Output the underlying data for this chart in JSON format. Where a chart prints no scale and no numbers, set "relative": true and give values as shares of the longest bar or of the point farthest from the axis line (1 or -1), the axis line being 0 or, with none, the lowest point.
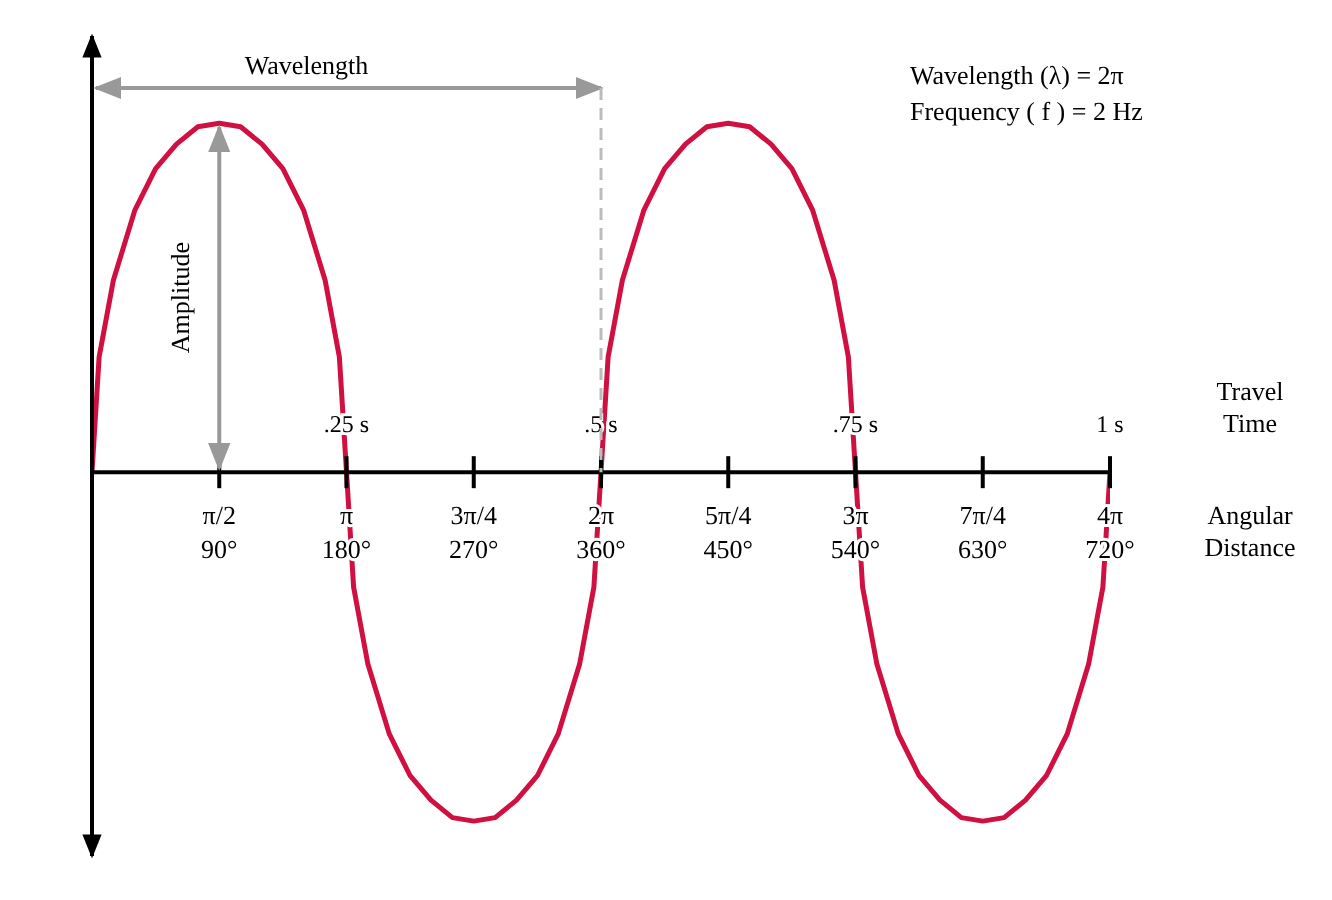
{
  "chart_data": {
    "type": "line",
    "relative": true,
    "xlabel": "Travel Time",
    "x2label": "Angular Distance",
    "xlim": [
      0,
      1
    ],
    "xticks": [
      {
        "value": 0.25,
        "label": ".25 s"
      },
      {
        "value": 0.5,
        "label": ".5 s"
      },
      {
        "value": 0.75,
        "label": ".75 s"
      },
      {
        "value": 1,
        "label": "1 s"
      }
    ],
    "x2lim": [
      0,
      720
    ],
    "x2ticks": [
      {
        "value": 90,
        "label": "90°"
      },
      {
        "value": 180,
        "label": "180°"
      },
      {
        "value": 270,
        "label": "270°"
      },
      {
        "value": 360,
        "label": "360°"
      },
      {
        "value": 450,
        "label": "450°"
      },
      {
        "value": 540,
        "label": "540°"
      },
      {
        "value": 630,
        "label": "630°"
      },
      {
        "value": 720,
        "label": "720°"
      }
    ],
    "annotations": [
      "Wavelength",
      "Amplitude",
      "Wavelength (λ) = 2π",
      "Frequency ( f ) = 2 Hz",
      "π/2",
      "π",
      "3π/4",
      "2π",
      "5π/4",
      "3π",
      "7π/4",
      "4π"
    ],
    "series": [
      {
        "color": "#d01040",
        "x": [
          0,
          0.007,
          0.021,
          0.042,
          0.0625,
          0.083,
          0.104,
          0.125,
          0.146,
          0.167,
          0.1875,
          0.208,
          0.229,
          0.243,
          0.25,
          0.257,
          0.271,
          0.292,
          0.3125,
          0.333,
          0.354,
          0.375,
          0.396,
          0.417,
          0.4375,
          0.458,
          0.479,
          0.493,
          0.5,
          0.507,
          0.521,
          0.542,
          0.5625,
          0.583,
          0.604,
          0.625,
          0.646,
          0.667,
          0.6875,
          0.708,
          0.729,
          0.743,
          0.75,
          0.757,
          0.771,
          0.792,
          0.8125,
          0.833,
          0.854,
          0.875,
          0.896,
          0.917,
          0.9375,
          0.958,
          0.979,
          0.993,
          1
        ],
        "values": [
          0,
          0.33,
          0.55,
          0.75,
          0.87,
          0.94,
          0.99,
          1,
          0.99,
          0.94,
          0.87,
          0.75,
          0.55,
          0.33,
          0,
          -0.33,
          -0.55,
          -0.75,
          -0.87,
          -0.94,
          -0.99,
          -1,
          -0.99,
          -0.94,
          -0.87,
          -0.75,
          -0.55,
          -0.33,
          0,
          0.33,
          0.55,
          0.75,
          0.87,
          0.94,
          0.99,
          1,
          0.99,
          0.94,
          0.87,
          0.75,
          0.55,
          0.33,
          0,
          -0.33,
          -0.55,
          -0.75,
          -0.87,
          -0.94,
          -0.99,
          -1,
          -0.99,
          -0.94,
          -0.87,
          -0.75,
          -0.55,
          -0.33,
          0
        ]
      }
    ]
  }
}
